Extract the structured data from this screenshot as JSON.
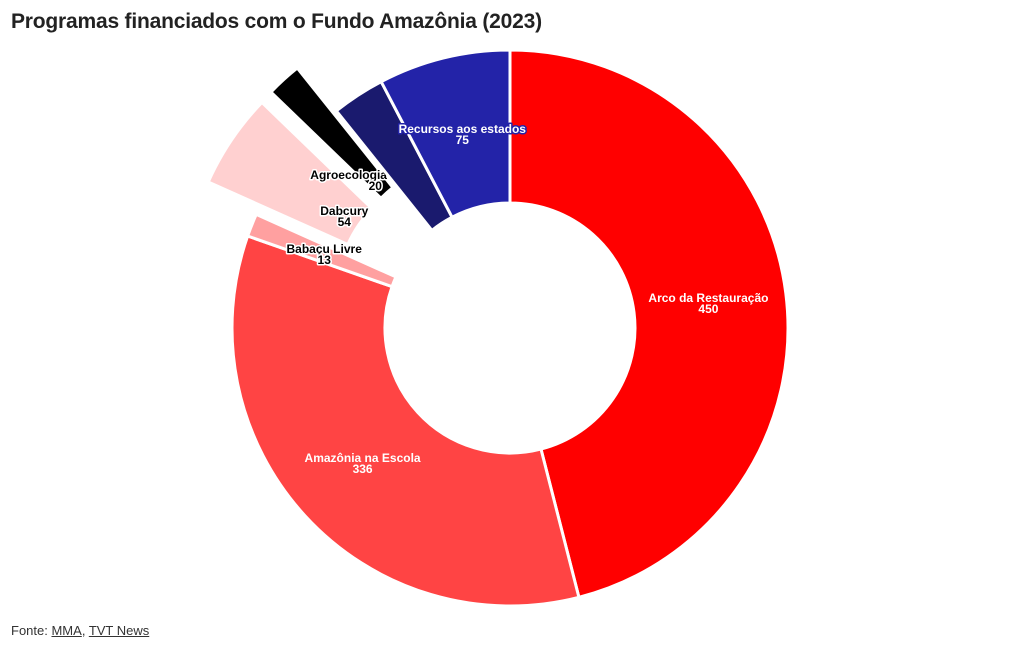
{
  "header": {
    "title": "Programas financiados com o Fundo Amazônia (2023)"
  },
  "footer": {
    "source_prefix": "Fonte: ",
    "source_links": [
      "MMA",
      "TVT News"
    ],
    "separator": ", "
  },
  "chart_data": {
    "type": "pie",
    "title": "Programas financiados com o Fundo Amazônia (2023)",
    "donut": true,
    "start": "12 o'clock",
    "direction": "clockwise",
    "slices": [
      {
        "label": "Arco da Restauração",
        "value": 450,
        "color": "#ff0000",
        "text_color": "#ffffff",
        "halo": "#ff0000",
        "pulled": false
      },
      {
        "label": "Amazônia na Escola",
        "value": 336,
        "color": "#ff4444",
        "text_color": "#ffffff",
        "halo": "#ff4444",
        "pulled": false
      },
      {
        "label": "Babaçu Livre",
        "value": 13,
        "color": "#ffa0a0",
        "text_color": "#000000",
        "halo": "#ffffff",
        "pulled": false
      },
      {
        "label": "Dabcury",
        "value": 54,
        "color": "#ffd0d0",
        "text_color": "#000000",
        "halo": "#ffffff",
        "pulled": true
      },
      {
        "label": "Agroecologia em Rede",
        "value": 20,
        "color": "#000000",
        "text_color": "#000000",
        "halo": "#ffffff",
        "pulled": true
      },
      {
        "label": "",
        "value": 30,
        "color": "#1a1a6e",
        "text_color": "#ffffff",
        "halo": "#1a1a6e",
        "pulled": false
      },
      {
        "label": "Recursos aos estados",
        "value": 75,
        "color": "#2323a8",
        "text_color": "#ffffff",
        "halo": "#2323a8",
        "pulled": false
      }
    ]
  }
}
